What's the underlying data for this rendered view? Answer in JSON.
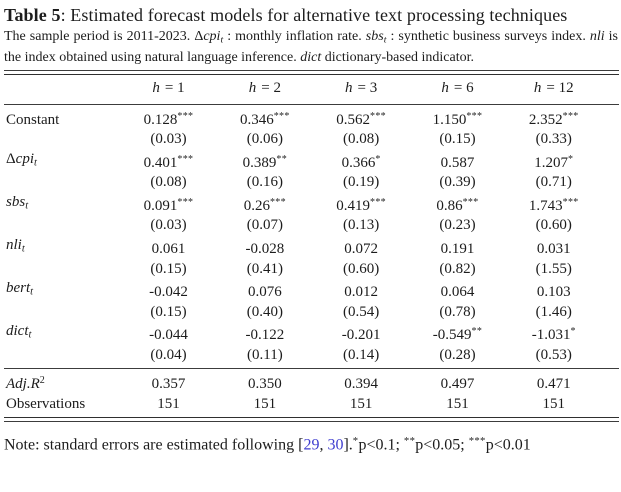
{
  "title": {
    "bold": "Table 5",
    "rest": ": Estimated forecast models for alternative text processing techniques"
  },
  "caption": {
    "s1": "The sample period is 2011-2023. ",
    "delta": "Δ",
    "m1": "cpi",
    "m1sub": "t",
    "s2": " : monthly inflation rate. ",
    "m2": "sbs",
    "m2sub": "t",
    "s3": " : synthetic business surveys index. ",
    "m3": "nli",
    "s4": " is the index obtained using natural language inference. ",
    "m4": "dict",
    "s5": " dictionary-based indicator."
  },
  "table": {
    "headers": [
      {
        "lhs": "h",
        "rhs": "= 1"
      },
      {
        "lhs": "h",
        "rhs": "= 2"
      },
      {
        "lhs": "h",
        "rhs": "= 3"
      },
      {
        "lhs": "h",
        "rhs": "= 6"
      },
      {
        "lhs": "h",
        "rhs": "= 12"
      }
    ],
    "rows": [
      {
        "label": {
          "pre": "",
          "base": "Constant",
          "sub": ""
        },
        "est": [
          {
            "v": "0.128",
            "s": "***"
          },
          {
            "v": "0.346",
            "s": "***"
          },
          {
            "v": "0.562",
            "s": "***"
          },
          {
            "v": "1.150",
            "s": "***"
          },
          {
            "v": "2.352",
            "s": "***"
          }
        ],
        "se": [
          "(0.03)",
          "(0.06)",
          "(0.08)",
          "(0.15)",
          "(0.33)"
        ]
      },
      {
        "label": {
          "pre": "Δ",
          "base": "cpi",
          "sub": "t"
        },
        "est": [
          {
            "v": "0.401",
            "s": "***"
          },
          {
            "v": "0.389",
            "s": "**"
          },
          {
            "v": "0.366",
            "s": "*"
          },
          {
            "v": "0.587",
            "s": ""
          },
          {
            "v": "1.207",
            "s": "*"
          }
        ],
        "se": [
          "(0.08)",
          "(0.16)",
          "(0.19)",
          "(0.39)",
          "(0.71)"
        ]
      },
      {
        "label": {
          "pre": "",
          "base": "sbs",
          "sub": "t"
        },
        "est": [
          {
            "v": "0.091",
            "s": "***"
          },
          {
            "v": "0.26",
            "s": "***"
          },
          {
            "v": "0.419",
            "s": "***"
          },
          {
            "v": "0.86",
            "s": "***"
          },
          {
            "v": "1.743",
            "s": "***"
          }
        ],
        "se": [
          "(0.03)",
          "(0.07)",
          "(0.13)",
          "(0.23)",
          "(0.60)"
        ]
      },
      {
        "label": {
          "pre": "",
          "base": "nli",
          "sub": "t"
        },
        "est": [
          {
            "v": "0.061",
            "s": ""
          },
          {
            "v": "-0.028",
            "s": ""
          },
          {
            "v": "0.072",
            "s": ""
          },
          {
            "v": "0.191",
            "s": ""
          },
          {
            "v": "0.031",
            "s": ""
          }
        ],
        "se": [
          "(0.15)",
          "(0.41)",
          "(0.60)",
          "(0.82)",
          "(1.55)"
        ]
      },
      {
        "label": {
          "pre": "",
          "base": "bert",
          "sub": "t"
        },
        "est": [
          {
            "v": "-0.042",
            "s": ""
          },
          {
            "v": "0.076",
            "s": ""
          },
          {
            "v": "0.012",
            "s": ""
          },
          {
            "v": "0.064",
            "s": ""
          },
          {
            "v": "0.103",
            "s": ""
          }
        ],
        "se": [
          "(0.15)",
          "(0.40)",
          "(0.54)",
          "(0.78)",
          "(1.46)"
        ]
      },
      {
        "label": {
          "pre": "",
          "base": "dict",
          "sub": "t"
        },
        "est": [
          {
            "v": "-0.044",
            "s": ""
          },
          {
            "v": "-0.122",
            "s": ""
          },
          {
            "v": "-0.201",
            "s": ""
          },
          {
            "v": "-0.549",
            "s": "**"
          },
          {
            "v": "-1.031",
            "s": "*"
          }
        ],
        "se": [
          "(0.04)",
          "(0.11)",
          "(0.14)",
          "(0.28)",
          "(0.53)"
        ]
      }
    ],
    "stats": [
      {
        "label": {
          "base": "Adj.R",
          "sup": "2"
        },
        "values": [
          "0.357",
          "0.350",
          "0.394",
          "0.497",
          "0.471"
        ]
      },
      {
        "label": {
          "base": "Observations",
          "sup": ""
        },
        "values": [
          "151",
          "151",
          "151",
          "151",
          "151"
        ]
      }
    ]
  },
  "note": {
    "lead": "Note: standard errors are estimated following ",
    "bracket_open": "[",
    "cite1": "29",
    "sep": ", ",
    "cite2": "30",
    "bracket_close": "].",
    "star1": "*",
    "p1": "p<0.1; ",
    "star2": "**",
    "p2": "p<0.05; ",
    "star3": "***",
    "p3": "p<0.01"
  },
  "colors": {
    "citation_link": "#3f3dcf",
    "text": "#1c1c1c",
    "rule": "#3c3c3c",
    "background": "#ffffff"
  }
}
